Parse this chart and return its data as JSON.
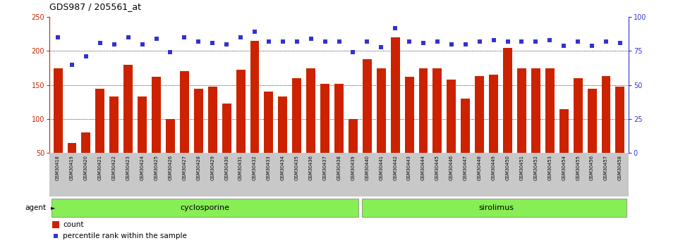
{
  "title": "GDS987 / 205561_at",
  "samples": [
    "GSM30418",
    "GSM30419",
    "GSM30420",
    "GSM30421",
    "GSM30422",
    "GSM30423",
    "GSM30424",
    "GSM30425",
    "GSM30426",
    "GSM30427",
    "GSM30428",
    "GSM30429",
    "GSM30430",
    "GSM30431",
    "GSM30432",
    "GSM30433",
    "GSM30434",
    "GSM30435",
    "GSM30436",
    "GSM30437",
    "GSM30438",
    "GSM30439",
    "GSM30440",
    "GSM30441",
    "GSM30442",
    "GSM30443",
    "GSM30444",
    "GSM30445",
    "GSM30446",
    "GSM30447",
    "GSM30448",
    "GSM30449",
    "GSM30450",
    "GSM30451",
    "GSM30452",
    "GSM30453",
    "GSM30454",
    "GSM30455",
    "GSM30456",
    "GSM30457",
    "GSM30458"
  ],
  "counts": [
    175,
    65,
    80,
    145,
    133,
    180,
    133,
    162,
    100,
    170,
    145,
    148,
    123,
    172,
    215,
    140,
    133,
    160,
    175,
    152,
    152,
    100,
    188,
    175,
    220,
    162,
    175,
    175,
    158,
    130,
    163,
    165,
    205,
    175,
    175,
    175,
    115,
    160,
    145,
    163,
    148
  ],
  "percentile_ranks_pct": [
    85,
    65,
    71,
    81,
    80,
    85,
    80,
    84,
    74,
    85,
    82,
    81,
    80,
    85,
    89,
    82,
    82,
    82,
    84,
    82,
    82,
    74,
    82,
    78,
    92,
    82,
    81,
    82,
    80,
    80,
    82,
    83,
    82,
    82,
    82,
    83,
    79,
    82,
    79,
    82,
    81
  ],
  "bar_color": "#cc2200",
  "dot_color": "#3333cc",
  "cyclosporine_count": 22,
  "sirolimus_count": 19,
  "group_color": "#88ee55",
  "left_ylim": [
    50,
    250
  ],
  "right_ylim": [
    0,
    100
  ],
  "left_yticks": [
    50,
    100,
    150,
    200,
    250
  ],
  "right_yticks": [
    0,
    25,
    50,
    75,
    100
  ],
  "gridlines": [
    100,
    150,
    200
  ],
  "bg_color": "#ffffff",
  "tick_bg_color": "#c8c8c8"
}
